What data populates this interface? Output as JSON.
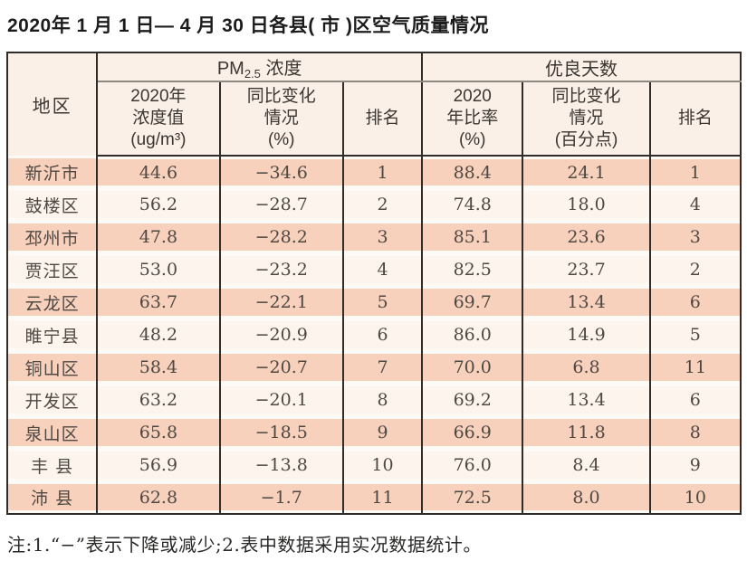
{
  "title": "2020年 1 月 1 日— 4 月 30 日各县( 市 )区空气质量情况",
  "table": {
    "region_header": "地区",
    "pm_group": {
      "prefix": "PM",
      "sub": "2.5",
      "suffix": " 浓度"
    },
    "days_group_label": "优良天数",
    "subheaders": [
      "2020年\n浓度值\n(ug/m³)",
      "同比变化\n情况\n(%)",
      "排名",
      "2020\n年比率\n(%)",
      "同比变化\n情况\n(百分点)",
      "排名"
    ],
    "rows": [
      {
        "region": "新沂市",
        "pm_value": "44.6",
        "pm_change": "−34.6",
        "pm_rank": "1",
        "days_rate": "88.4",
        "days_change": "24.1",
        "days_rank": "1"
      },
      {
        "region": "鼓楼区",
        "pm_value": "56.2",
        "pm_change": "−28.7",
        "pm_rank": "2",
        "days_rate": "74.8",
        "days_change": "18.0",
        "days_rank": "4"
      },
      {
        "region": "邳州市",
        "pm_value": "47.8",
        "pm_change": "−28.2",
        "pm_rank": "3",
        "days_rate": "85.1",
        "days_change": "23.6",
        "days_rank": "3"
      },
      {
        "region": "贾汪区",
        "pm_value": "53.0",
        "pm_change": "−23.2",
        "pm_rank": "4",
        "days_rate": "82.5",
        "days_change": "23.7",
        "days_rank": "2"
      },
      {
        "region": "云龙区",
        "pm_value": "63.7",
        "pm_change": "−22.1",
        "pm_rank": "5",
        "days_rate": "69.7",
        "days_change": "13.4",
        "days_rank": "6"
      },
      {
        "region": "睢宁县",
        "pm_value": "48.2",
        "pm_change": "−20.9",
        "pm_rank": "6",
        "days_rate": "86.0",
        "days_change": "14.9",
        "days_rank": "5"
      },
      {
        "region": "铜山区",
        "pm_value": "58.4",
        "pm_change": "−20.7",
        "pm_rank": "7",
        "days_rate": "70.0",
        "days_change": "6.8",
        "days_rank": "11"
      },
      {
        "region": "开发区",
        "pm_value": "63.2",
        "pm_change": "−20.1",
        "pm_rank": "8",
        "days_rate": "69.2",
        "days_change": "13.4",
        "days_rank": "6"
      },
      {
        "region": "泉山区",
        "pm_value": "65.8",
        "pm_change": "−18.5",
        "pm_rank": "9",
        "days_rate": "66.9",
        "days_change": "11.8",
        "days_rank": "8"
      },
      {
        "region": "丰 县",
        "pm_value": "56.9",
        "pm_change": "−13.8",
        "pm_rank": "10",
        "days_rate": "76.0",
        "days_change": "8.4",
        "days_rank": "9"
      },
      {
        "region": "沛 县",
        "pm_value": "62.8",
        "pm_change": "−1.7",
        "pm_rank": "11",
        "days_rate": "72.5",
        "days_change": "8.0",
        "days_rank": "10"
      }
    ]
  },
  "note": "注:1.“−”表示下降或减少;2.表中数据采用实况数据统计。",
  "colors": {
    "row_shade": "#f8d1bd",
    "row_light": "#fdf4ee",
    "header_bg": "#fbf0e8",
    "border": "#2f2c29",
    "header_divider": "#8e8882"
  }
}
